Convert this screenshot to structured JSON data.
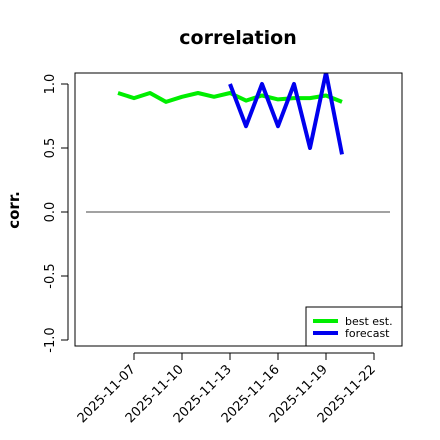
{
  "chart_data": {
    "type": "line",
    "title": "correlation",
    "ylabel": "corr.",
    "xlabel": "",
    "ylim": [
      -1.0,
      1.0
    ],
    "yticks": [
      -1.0,
      -0.5,
      0.0,
      0.5,
      1.0
    ],
    "ytick_labels": [
      "-1.0",
      "-0.5",
      "0.0",
      "0.5",
      "1.0"
    ],
    "xlim": [
      "2025-11-04",
      "2025-11-23"
    ],
    "xticks": [
      "2025-11-07",
      "2025-11-10",
      "2025-11-13",
      "2025-11-16",
      "2025-11-19",
      "2025-11-22"
    ],
    "xtick_labels": [
      "2025-11-07",
      "2025-11-10",
      "2025-11-13",
      "2025-11-16",
      "2025-11-19",
      "2025-11-22"
    ],
    "highlight_tick": "2025-11-13",
    "highlight_color": "#1a8a1a",
    "reference_line": 0.0,
    "grid": false,
    "legend_position": "bottom-right",
    "series": [
      {
        "name": "best est.",
        "color": "#00ee00",
        "x": [
          "2025-11-06",
          "2025-11-07",
          "2025-11-08",
          "2025-11-09",
          "2025-11-10",
          "2025-11-11",
          "2025-11-12",
          "2025-11-13",
          "2025-11-14",
          "2025-11-15",
          "2025-11-16",
          "2025-11-17",
          "2025-11-18",
          "2025-11-19",
          "2025-11-20"
        ],
        "y": [
          0.93,
          0.89,
          0.93,
          0.86,
          0.9,
          0.93,
          0.9,
          0.93,
          0.87,
          0.91,
          0.88,
          0.89,
          0.89,
          0.91,
          0.86
        ]
      },
      {
        "name": "forecast",
        "color": "#0000ee",
        "x": [
          "2025-11-13",
          "2025-11-14",
          "2025-11-15",
          "2025-11-16",
          "2025-11-17",
          "2025-11-18",
          "2025-11-19",
          "2025-11-20"
        ],
        "y": [
          1.0,
          0.67,
          1.0,
          0.67,
          1.0,
          0.5,
          1.09,
          0.45
        ]
      }
    ]
  }
}
